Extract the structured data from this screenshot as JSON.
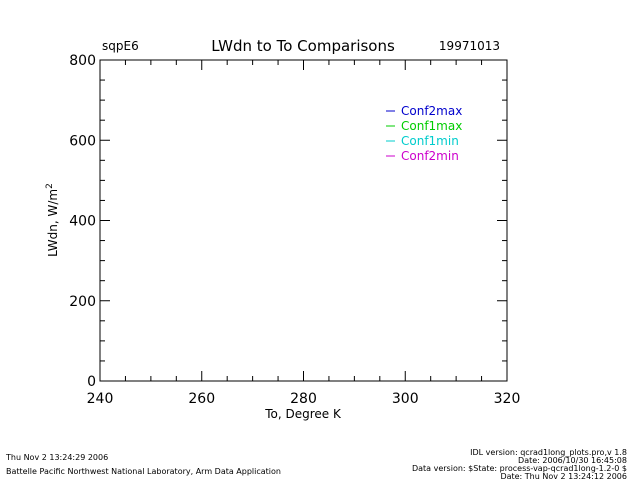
{
  "header": {
    "site": "sqpE6",
    "title": "LWdn to To Comparisons",
    "date": "19971013"
  },
  "chart_data": {
    "type": "line",
    "xlabel": "To, Degree K",
    "ylabel_main": "LWdn, W/m",
    "ylabel_sup": "2",
    "xlim": [
      240,
      320
    ],
    "ylim": [
      0,
      800
    ],
    "x_ticks": [
      240,
      260,
      280,
      300,
      320
    ],
    "y_ticks": [
      0,
      200,
      400,
      600,
      800
    ],
    "grid": false,
    "legend_position": "top-right",
    "series": [
      {
        "name": "Conf2max",
        "color": "#0000cc",
        "x": [],
        "y": []
      },
      {
        "name": "Conf1max",
        "color": "#00cc00",
        "x": [],
        "y": []
      },
      {
        "name": "Conf1min",
        "color": "#00cccc",
        "x": [],
        "y": []
      },
      {
        "name": "Conf2min",
        "color": "#cc00cc",
        "x": [],
        "y": []
      }
    ]
  },
  "footer": {
    "left_line1": "Thu Nov  2 13:24:29 2006",
    "left_line2": "Battelle Pacific Northwest National Laboratory, Arm Data Application",
    "right_line1": "IDL version: qcrad1long_plots.pro,v 1.8",
    "right_line2": "Date: 2006/10/30 16:45:08",
    "right_line3": "Data version: $State: process-vap-qcrad1long-1.2-0 $",
    "right_line4": "Date: Thu Nov  2 13:24:12 2006"
  }
}
